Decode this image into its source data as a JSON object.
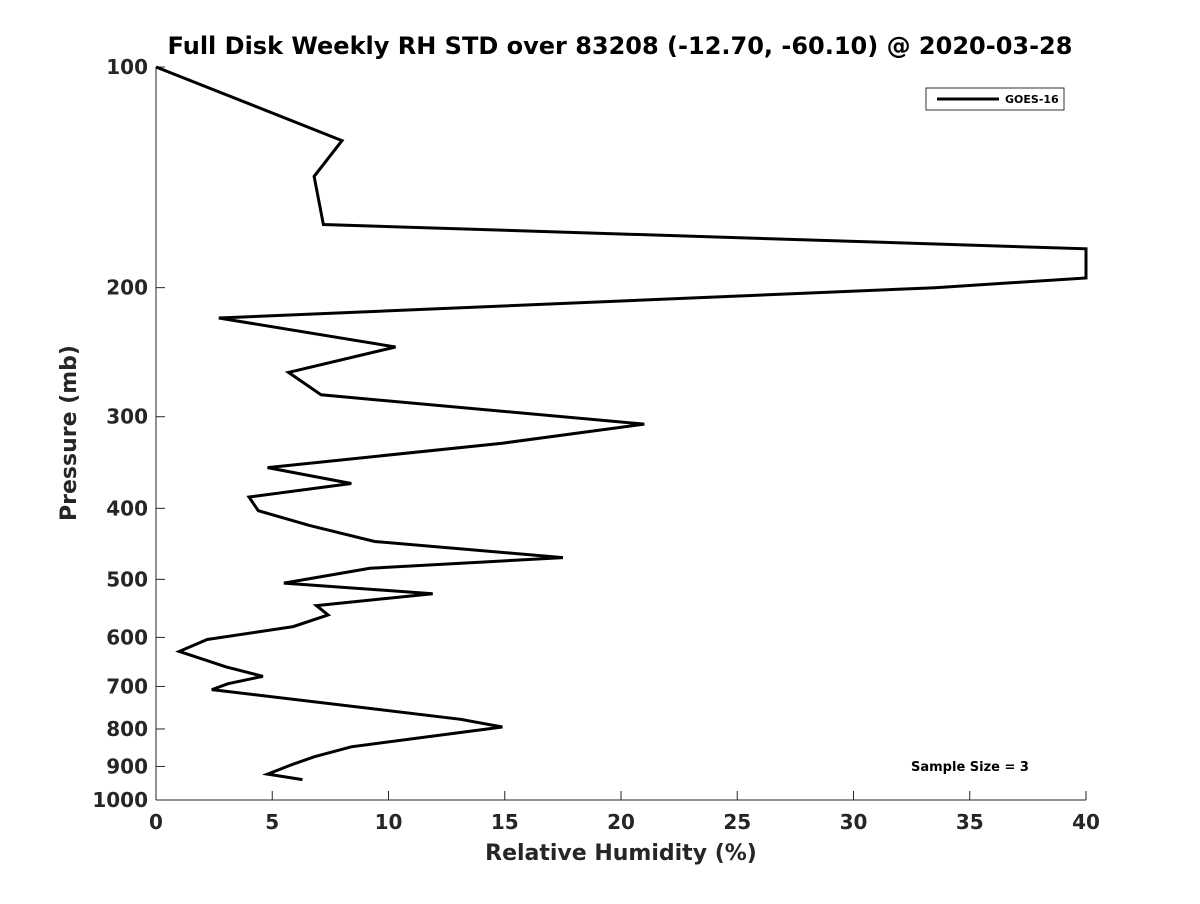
{
  "chart_data": {
    "type": "line",
    "title": "Full Disk Weekly RH STD over 83208 (-12.70, -60.10) @ 2020-03-28",
    "xlabel": "Relative Humidity (%)",
    "ylabel": "Pressure (mb)",
    "xlim": [
      0,
      40
    ],
    "ylim": [
      100,
      1000
    ],
    "y_scale": "log",
    "y_reversed": true,
    "x_ticks": [
      "0",
      "5",
      "10",
      "15",
      "20",
      "25",
      "30",
      "35",
      "40"
    ],
    "y_ticks": [
      "100",
      "200",
      "300",
      "400",
      "500",
      "600",
      "700",
      "800",
      "900",
      "1000"
    ],
    "grid": false,
    "legend_position": "top-right",
    "annotation": "Sample Size = 3",
    "series": [
      {
        "name": "GOES-16",
        "color": "#000000",
        "points": [
          [
            0.0,
            100
          ],
          [
            8.0,
            126
          ],
          [
            6.8,
            141
          ],
          [
            7.2,
            164
          ],
          [
            40.0,
            177
          ],
          [
            40.0,
            194
          ],
          [
            33.5,
            200
          ],
          [
            2.7,
            220
          ],
          [
            10.3,
            241
          ],
          [
            5.7,
            261
          ],
          [
            7.1,
            280
          ],
          [
            21.0,
            307
          ],
          [
            14.9,
            326
          ],
          [
            4.8,
            352
          ],
          [
            8.4,
            370
          ],
          [
            4.0,
            386
          ],
          [
            4.4,
            403
          ],
          [
            6.6,
            422
          ],
          [
            9.4,
            444
          ],
          [
            17.5,
            467
          ],
          [
            9.2,
            483
          ],
          [
            5.5,
            506
          ],
          [
            11.9,
            523
          ],
          [
            6.9,
            543
          ],
          [
            7.4,
            559
          ],
          [
            5.9,
            580
          ],
          [
            2.2,
            604
          ],
          [
            1.0,
            627
          ],
          [
            3.0,
            658
          ],
          [
            4.6,
            678
          ],
          [
            3.1,
            694
          ],
          [
            2.4,
            707
          ],
          [
            13.1,
            776
          ],
          [
            14.9,
            795
          ],
          [
            8.4,
            846
          ],
          [
            6.8,
            873
          ],
          [
            5.8,
            896
          ],
          [
            4.8,
            922
          ],
          [
            6.3,
            938
          ]
        ]
      }
    ]
  }
}
